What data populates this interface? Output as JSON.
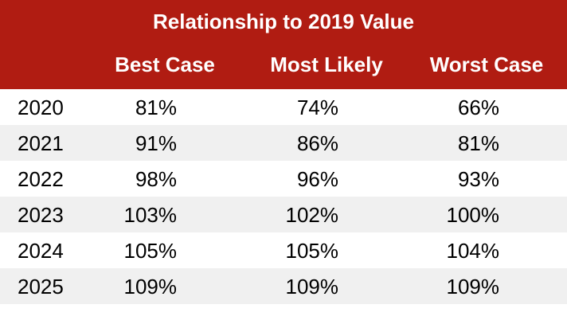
{
  "chart_data": {
    "type": "table",
    "title": "Relationship to 2019 Value",
    "columns": [
      "Best Case",
      "Most Likely",
      "Worst Case"
    ],
    "rows": [
      {
        "year": "2020",
        "values": [
          "81%",
          "74%",
          "66%"
        ]
      },
      {
        "year": "2021",
        "values": [
          "91%",
          "86%",
          "81%"
        ]
      },
      {
        "year": "2022",
        "values": [
          "98%",
          "96%",
          "93%"
        ]
      },
      {
        "year": "2023",
        "values": [
          "103%",
          "102%",
          "100%"
        ]
      },
      {
        "year": "2024",
        "values": [
          "105%",
          "105%",
          "104%"
        ]
      },
      {
        "year": "2025",
        "values": [
          "109%",
          "109%",
          "109%"
        ]
      }
    ],
    "colors": {
      "header": "#b01c12",
      "band": "#f0f0f0"
    }
  }
}
